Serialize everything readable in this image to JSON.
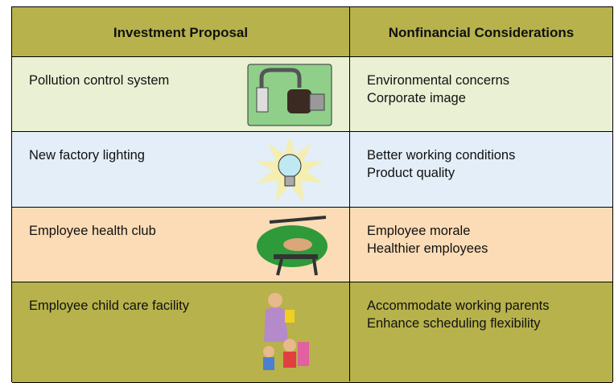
{
  "table": {
    "headers": [
      "Investment Proposal",
      "Nonfinancial Considerations"
    ],
    "rows": [
      [
        "Pollution control system",
        [
          "Environmental concerns",
          "Corporate image"
        ]
      ],
      [
        "New factory lighting",
        [
          "Better working conditions",
          "Product quality"
        ]
      ],
      [
        "Employee health club",
        [
          "Employee morale",
          "Healthier employees"
        ]
      ],
      [
        "Employee child care facility",
        [
          "Accommodate working parents",
          "Enhance scheduling flexibility"
        ]
      ]
    ]
  }
}
